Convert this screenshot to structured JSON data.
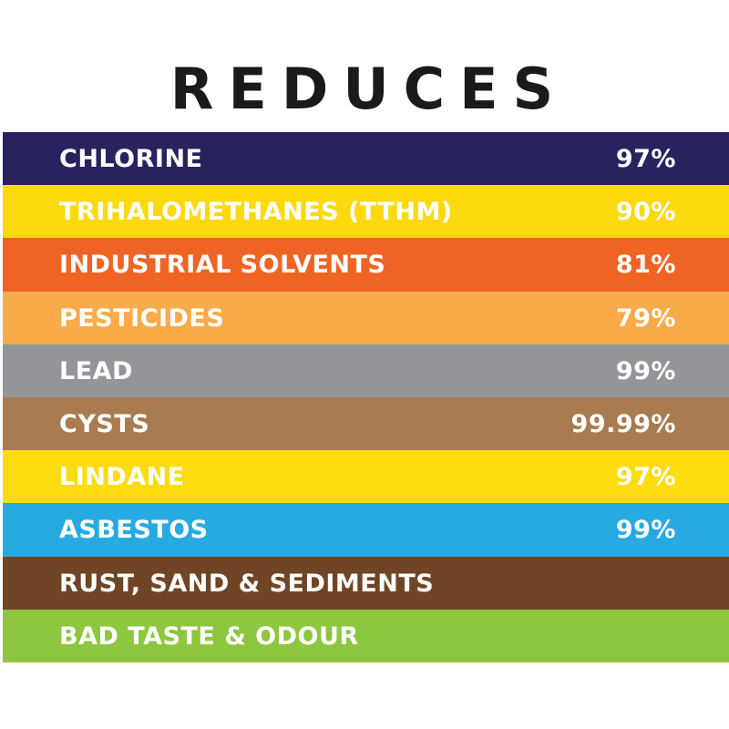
{
  "header": {
    "title": "REDUCES"
  },
  "table": {
    "rows": [
      [
        "CHLORINE",
        "97%"
      ],
      [
        "TRIHALOMETHANES (TTHM)",
        "90%"
      ],
      [
        "INDUSTRIAL SOLVENTS",
        "81%"
      ],
      [
        "PESTICIDES",
        "79%"
      ],
      [
        "LEAD",
        "99%"
      ],
      [
        "CYSTS",
        "99.99%"
      ],
      [
        "LINDANE",
        "97%"
      ],
      [
        "ASBESTOS",
        "99%"
      ],
      [
        "RUST, SAND & SEDIMENTS"
      ],
      [
        "BAD TASTE & ODOUR"
      ]
    ]
  }
}
